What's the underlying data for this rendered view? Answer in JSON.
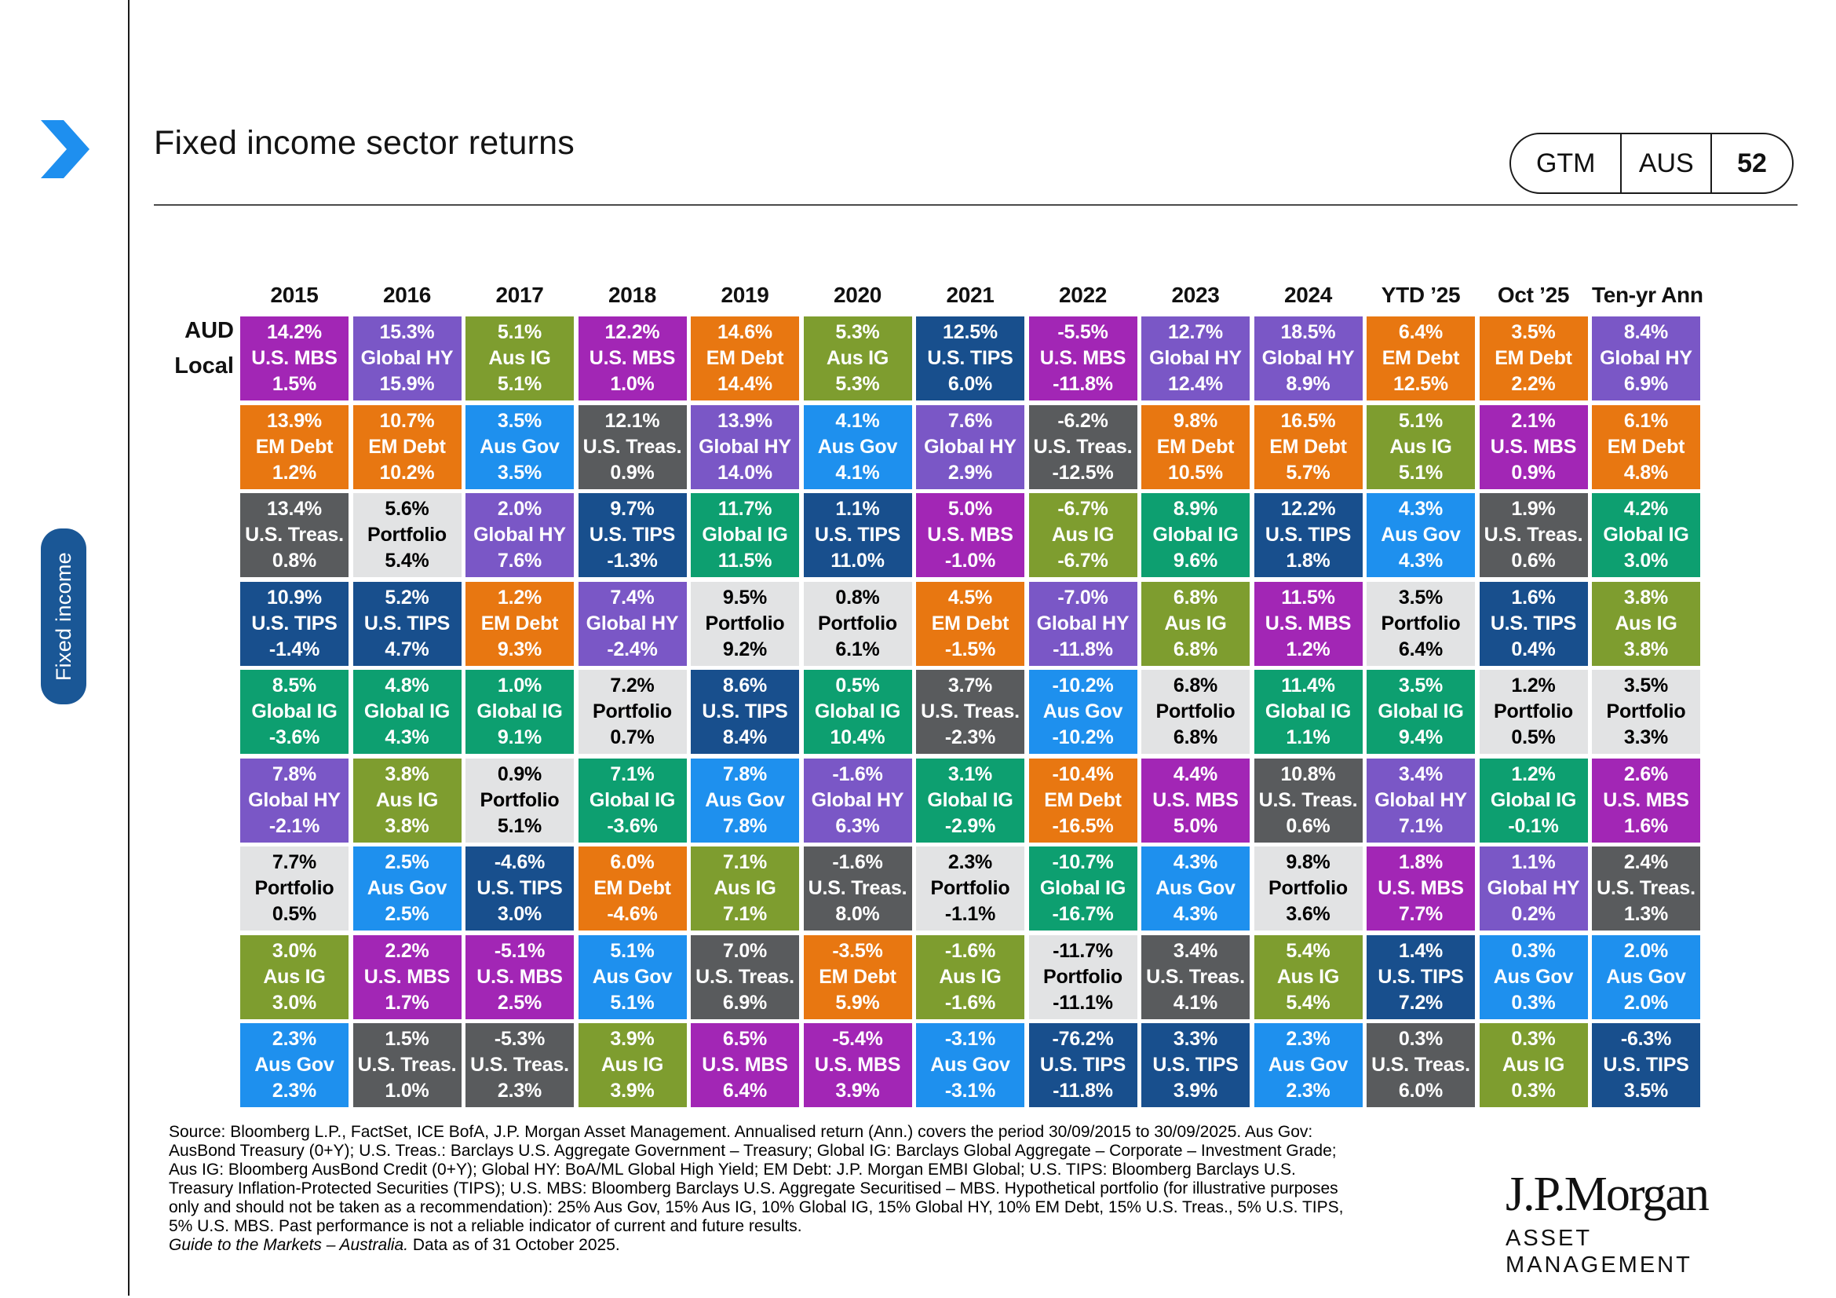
{
  "header": {
    "title": "Fixed income sector returns",
    "gtm": {
      "label": "GTM",
      "region": "AUS",
      "page": "52"
    }
  },
  "side_tab": {
    "label": "Fixed income"
  },
  "row_axis": {
    "top_label": "AUD",
    "bottom_label": "Local"
  },
  "chart_data": {
    "type": "table",
    "title": "Fixed income sector returns",
    "description": "Quilt chart of annual fixed income sector returns; each cell shows AUD return (top), sector name (middle), local-currency return (bottom), ranked best to worst per column.",
    "columns": [
      "2015",
      "2016",
      "2017",
      "2018",
      "2019",
      "2020",
      "2021",
      "2022",
      "2023",
      "2024",
      "YTD ’25",
      "Oct ’25",
      "Ten-yr Ann"
    ],
    "asset_colors": {
      "U.S. MBS": "#a226b5",
      "Global HY": "#7a57c6",
      "Aus IG": "#7e9d2f",
      "Aus Gov": "#1e90ee",
      "EM Debt": "#e87711",
      "U.S. Treas.": "#595b5d",
      "U.S. TIPS": "#184f8d",
      "Global IG": "#0d9f70",
      "Portfolio": "#e2e3e4"
    },
    "portfolio_text_color": "#000000",
    "cell_text_color": "#ffffff",
    "series": [
      {
        "label": "2015",
        "cells": [
          [
            "14.2%",
            "U.S. MBS",
            "1.5%"
          ],
          [
            "13.9%",
            "EM Debt",
            "1.2%"
          ],
          [
            "13.4%",
            "U.S. Treas.",
            "0.8%"
          ],
          [
            "10.9%",
            "U.S. TIPS",
            "-1.4%"
          ],
          [
            "8.5%",
            "Global IG",
            "-3.6%"
          ],
          [
            "7.8%",
            "Global HY",
            "-2.1%"
          ],
          [
            "7.7%",
            "Portfolio",
            "0.5%"
          ],
          [
            "3.0%",
            "Aus IG",
            "3.0%"
          ],
          [
            "2.3%",
            "Aus Gov",
            "2.3%"
          ]
        ]
      },
      {
        "label": "2016",
        "cells": [
          [
            "15.3%",
            "Global HY",
            "15.9%"
          ],
          [
            "10.7%",
            "EM Debt",
            "10.2%"
          ],
          [
            "5.6%",
            "Portfolio",
            "5.4%"
          ],
          [
            "5.2%",
            "U.S. TIPS",
            "4.7%"
          ],
          [
            "4.8%",
            "Global IG",
            "4.3%"
          ],
          [
            "3.8%",
            "Aus IG",
            "3.8%"
          ],
          [
            "2.5%",
            "Aus Gov",
            "2.5%"
          ],
          [
            "2.2%",
            "U.S. MBS",
            "1.7%"
          ],
          [
            "1.5%",
            "U.S. Treas.",
            "1.0%"
          ]
        ]
      },
      {
        "label": "2017",
        "cells": [
          [
            "5.1%",
            "Aus IG",
            "5.1%"
          ],
          [
            "3.5%",
            "Aus Gov",
            "3.5%"
          ],
          [
            "2.0%",
            "Global HY",
            "7.6%"
          ],
          [
            "1.2%",
            "EM Debt",
            "9.3%"
          ],
          [
            "1.0%",
            "Global IG",
            "9.1%"
          ],
          [
            "0.9%",
            "Portfolio",
            "5.1%"
          ],
          [
            "-4.6%",
            "U.S. TIPS",
            "3.0%"
          ],
          [
            "-5.1%",
            "U.S. MBS",
            "2.5%"
          ],
          [
            "-5.3%",
            "U.S. Treas.",
            "2.3%"
          ]
        ]
      },
      {
        "label": "2018",
        "cells": [
          [
            "12.2%",
            "U.S. MBS",
            "1.0%"
          ],
          [
            "12.1%",
            "U.S. Treas.",
            "0.9%"
          ],
          [
            "9.7%",
            "U.S. TIPS",
            "-1.3%"
          ],
          [
            "7.4%",
            "Global HY",
            "-2.4%"
          ],
          [
            "7.2%",
            "Portfolio",
            "0.7%"
          ],
          [
            "7.1%",
            "Global IG",
            "-3.6%"
          ],
          [
            "6.0%",
            "EM Debt",
            "-4.6%"
          ],
          [
            "5.1%",
            "Aus Gov",
            "5.1%"
          ],
          [
            "3.9%",
            "Aus IG",
            "3.9%"
          ]
        ]
      },
      {
        "label": "2019",
        "cells": [
          [
            "14.6%",
            "EM Debt",
            "14.4%"
          ],
          [
            "13.9%",
            "Global HY",
            "14.0%"
          ],
          [
            "11.7%",
            "Global IG",
            "11.5%"
          ],
          [
            "9.5%",
            "Portfolio",
            "9.2%"
          ],
          [
            "8.6%",
            "U.S. TIPS",
            "8.4%"
          ],
          [
            "7.8%",
            "Aus Gov",
            "7.8%"
          ],
          [
            "7.1%",
            "Aus IG",
            "7.1%"
          ],
          [
            "7.0%",
            "U.S. Treas.",
            "6.9%"
          ],
          [
            "6.5%",
            "U.S. MBS",
            "6.4%"
          ]
        ]
      },
      {
        "label": "2020",
        "cells": [
          [
            "5.3%",
            "Aus IG",
            "5.3%"
          ],
          [
            "4.1%",
            "Aus Gov",
            "4.1%"
          ],
          [
            "1.1%",
            "U.S. TIPS",
            "11.0%"
          ],
          [
            "0.8%",
            "Portfolio",
            "6.1%"
          ],
          [
            "0.5%",
            "Global IG",
            "10.4%"
          ],
          [
            "-1.6%",
            "Global HY",
            "6.3%"
          ],
          [
            "-1.6%",
            "U.S. Treas.",
            "8.0%"
          ],
          [
            "-3.5%",
            "EM Debt",
            "5.9%"
          ],
          [
            "-5.4%",
            "U.S. MBS",
            "3.9%"
          ]
        ]
      },
      {
        "label": "2021",
        "cells": [
          [
            "12.5%",
            "U.S. TIPS",
            "6.0%"
          ],
          [
            "7.6%",
            "Global HY",
            "2.9%"
          ],
          [
            "5.0%",
            "U.S. MBS",
            "-1.0%"
          ],
          [
            "4.5%",
            "EM Debt",
            "-1.5%"
          ],
          [
            "3.7%",
            "U.S. Treas.",
            "-2.3%"
          ],
          [
            "3.1%",
            "Global IG",
            "-2.9%"
          ],
          [
            "2.3%",
            "Portfolio",
            "-1.1%"
          ],
          [
            "-1.6%",
            "Aus IG",
            "-1.6%"
          ],
          [
            "-3.1%",
            "Aus Gov",
            "-3.1%"
          ]
        ]
      },
      {
        "label": "2022",
        "cells": [
          [
            "-5.5%",
            "U.S. MBS",
            "-11.8%"
          ],
          [
            "-6.2%",
            "U.S. Treas.",
            "-12.5%"
          ],
          [
            "-6.7%",
            "Aus IG",
            "-6.7%"
          ],
          [
            "-7.0%",
            "Global HY",
            "-11.8%"
          ],
          [
            "-10.2%",
            "Aus Gov",
            "-10.2%"
          ],
          [
            "-10.4%",
            "EM Debt",
            "-16.5%"
          ],
          [
            "-10.7%",
            "Global IG",
            "-16.7%"
          ],
          [
            "-11.7%",
            "Portfolio",
            "-11.1%"
          ],
          [
            "-76.2%",
            "U.S. TIPS",
            "-11.8%"
          ]
        ]
      },
      {
        "label": "2023",
        "cells": [
          [
            "12.7%",
            "Global HY",
            "12.4%"
          ],
          [
            "9.8%",
            "EM Debt",
            "10.5%"
          ],
          [
            "8.9%",
            "Global IG",
            "9.6%"
          ],
          [
            "6.8%",
            "Aus IG",
            "6.8%"
          ],
          [
            "6.8%",
            "Portfolio",
            "6.8%"
          ],
          [
            "4.4%",
            "U.S. MBS",
            "5.0%"
          ],
          [
            "4.3%",
            "Aus Gov",
            "4.3%"
          ],
          [
            "3.4%",
            "U.S. Treas.",
            "4.1%"
          ],
          [
            "3.3%",
            "U.S. TIPS",
            "3.9%"
          ]
        ]
      },
      {
        "label": "2024",
        "cells": [
          [
            "18.5%",
            "Global HY",
            "8.9%"
          ],
          [
            "16.5%",
            "EM Debt",
            "5.7%"
          ],
          [
            "12.2%",
            "U.S. TIPS",
            "1.8%"
          ],
          [
            "11.5%",
            "U.S. MBS",
            "1.2%"
          ],
          [
            "11.4%",
            "Global IG",
            "1.1%"
          ],
          [
            "10.8%",
            "U.S. Treas.",
            "0.6%"
          ],
          [
            "9.8%",
            "Portfolio",
            "3.6%"
          ],
          [
            "5.4%",
            "Aus IG",
            "5.4%"
          ],
          [
            "2.3%",
            "Aus Gov",
            "2.3%"
          ]
        ]
      },
      {
        "label": "YTD ’25",
        "cells": [
          [
            "6.4%",
            "EM Debt",
            "12.5%"
          ],
          [
            "5.1%",
            "Aus IG",
            "5.1%"
          ],
          [
            "4.3%",
            "Aus Gov",
            "4.3%"
          ],
          [
            "3.5%",
            "Portfolio",
            "6.4%"
          ],
          [
            "3.5%",
            "Global IG",
            "9.4%"
          ],
          [
            "3.4%",
            "Global HY",
            "7.1%"
          ],
          [
            "1.8%",
            "U.S. MBS",
            "7.7%"
          ],
          [
            "1.4%",
            "U.S. TIPS",
            "7.2%"
          ],
          [
            "0.3%",
            "U.S. Treas.",
            "6.0%"
          ]
        ]
      },
      {
        "label": "Oct ’25",
        "cells": [
          [
            "3.5%",
            "EM Debt",
            "2.2%"
          ],
          [
            "2.1%",
            "U.S. MBS",
            "0.9%"
          ],
          [
            "1.9%",
            "U.S. Treas.",
            "0.6%"
          ],
          [
            "1.6%",
            "U.S. TIPS",
            "0.4%"
          ],
          [
            "1.2%",
            "Portfolio",
            "0.5%"
          ],
          [
            "1.2%",
            "Global IG",
            "-0.1%"
          ],
          [
            "1.1%",
            "Global HY",
            "0.2%"
          ],
          [
            "0.3%",
            "Aus Gov",
            "0.3%"
          ],
          [
            "0.3%",
            "Aus IG",
            "0.3%"
          ]
        ]
      },
      {
        "label": "Ten-yr Ann",
        "cells": [
          [
            "8.4%",
            "Global HY",
            "6.9%"
          ],
          [
            "6.1%",
            "EM Debt",
            "4.8%"
          ],
          [
            "4.2%",
            "Global IG",
            "3.0%"
          ],
          [
            "3.8%",
            "Aus IG",
            "3.8%"
          ],
          [
            "3.5%",
            "Portfolio",
            "3.3%"
          ],
          [
            "2.6%",
            "U.S. MBS",
            "1.6%"
          ],
          [
            "2.4%",
            "U.S. Treas.",
            "1.3%"
          ],
          [
            "2.0%",
            "Aus Gov",
            "2.0%"
          ],
          [
            "-6.3%",
            "U.S. TIPS",
            "3.5%"
          ]
        ]
      }
    ]
  },
  "footnote": {
    "source_text": "Source: Bloomberg L.P., FactSet, ICE BofA, J.P. Morgan Asset Management. Annualised return (Ann.) covers the period 30/09/2015 to 30/09/2025. Aus Gov: AusBond Treasury (0+Y); U.S. Treas.: Barclays U.S. Aggregate Government – Treasury; Global IG: Barclays Global Aggregate – Corporate – Investment Grade; Aus IG: Bloomberg AusBond Credit (0+Y); Global HY: BoA/ML Global High Yield; EM Debt: J.P. Morgan EMBI Global; U.S. TIPS: Bloomberg Barclays U.S. Treasury Inflation-Protected Securities (TIPS); U.S. MBS: Bloomberg Barclays U.S. Aggregate Securitised – MBS. Hypothetical portfolio (for illustrative purposes only and should not be taken as a recommendation): 25% Aus Gov, 15% Aus IG, 10% Global IG, 15% Global HY, 10% EM Debt, 15% U.S. Treas., 5% U.S. TIPS, 5% U.S. MBS. Past performance is not a reliable indicator of current and future results.",
    "guide_italic": "Guide to the Markets – Australia.",
    "guide_rest": " Data as of 31 October 2025."
  },
  "logo": {
    "brand": "J.P.Morgan",
    "division": "ASSET MANAGEMENT"
  },
  "accent_colors": {
    "chevron_blue": "#1e8fef",
    "tab_blue": "#1a5796"
  }
}
